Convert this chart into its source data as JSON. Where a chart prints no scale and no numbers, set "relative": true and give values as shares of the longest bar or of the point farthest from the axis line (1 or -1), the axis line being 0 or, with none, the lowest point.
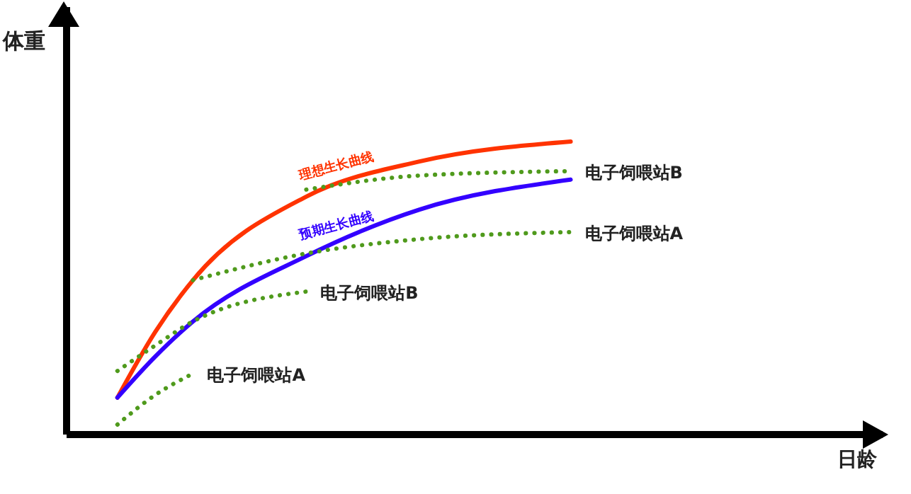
{
  "chart_data": {
    "type": "line",
    "relative": true,
    "annotations": [
      "日龄"
    ],
    "ylabel": "体重",
    "legend": false,
    "grid": false,
    "categories": [
      null,
      null,
      null,
      null,
      null,
      null,
      null,
      null,
      null,
      null,
      null,
      null,
      null
    ],
    "series": [
      {
        "name": "理想生长曲线",
        "color": "#ff3300",
        "line_style": "solid",
        "values": [
          0.126,
          0.35,
          0.527,
          null,
          null,
          0.812,
          null,
          null,
          0.932,
          null,
          null,
          null,
          1
        ]
      },
      {
        "name": "预期生长曲线",
        "color": "#3300ff",
        "line_style": "solid",
        "values": [
          0.126,
          0.266,
          0.386,
          null,
          null,
          0.609,
          null,
          null,
          0.768,
          null,
          null,
          null,
          0.87
        ]
      },
      {
        "name": "电子饲喂站A",
        "color": "#4f9a1c",
        "line_style": "dotted",
        "values": [
          0.034,
          0.135,
          0.208,
          null,
          null,
          null,
          null,
          null,
          null,
          null,
          null,
          null,
          null
        ]
      },
      {
        "name": "电子饲喂站B",
        "color": "#4f9a1c",
        "line_style": "dotted",
        "values": [
          0.217,
          0.304,
          0.386,
          null,
          null,
          0.488,
          null,
          null,
          null,
          null,
          null,
          null,
          null
        ]
      },
      {
        "name": "电子饲喂站A",
        "color": "#4f9a1c",
        "line_style": "dotted",
        "values": [
          null,
          null,
          0.527,
          null,
          null,
          0.618,
          null,
          null,
          0.667,
          null,
          null,
          null,
          0.691
        ]
      },
      {
        "name": "电子饲喂站B",
        "color": "#4f9a1c",
        "line_style": "dotted",
        "values": [
          null,
          null,
          null,
          null,
          null,
          0.836,
          null,
          null,
          0.884,
          null,
          null,
          null,
          0.899
        ]
      }
    ]
  }
}
